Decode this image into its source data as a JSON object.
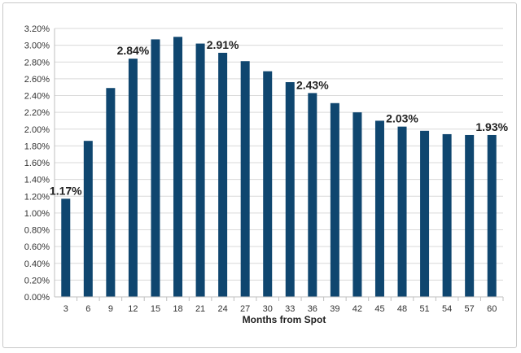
{
  "chart_data": {
    "type": "bar",
    "title": "",
    "xlabel": "Months from Spot",
    "ylabel": "",
    "categories": [
      "3",
      "6",
      "9",
      "12",
      "15",
      "18",
      "21",
      "24",
      "27",
      "30",
      "33",
      "36",
      "39",
      "42",
      "45",
      "48",
      "51",
      "54",
      "57",
      "60"
    ],
    "values": [
      1.17,
      1.86,
      2.49,
      2.84,
      3.07,
      3.1,
      3.02,
      2.91,
      2.81,
      2.69,
      2.56,
      2.43,
      2.31,
      2.2,
      2.1,
      2.03,
      1.98,
      1.94,
      1.93,
      1.93
    ],
    "ylim": [
      0,
      3.2
    ],
    "ytick_labels": [
      "0.00%",
      "0.20%",
      "0.40%",
      "0.60%",
      "0.80%",
      "1.00%",
      "1.20%",
      "1.40%",
      "1.60%",
      "1.80%",
      "2.00%",
      "2.20%",
      "2.40%",
      "2.60%",
      "2.80%",
      "3.00%",
      "3.20%"
    ],
    "data_labels": [
      {
        "category": "3",
        "text": "1.17%"
      },
      {
        "category": "12",
        "text": "2.84%"
      },
      {
        "category": "24",
        "text": "2.91%"
      },
      {
        "category": "36",
        "text": "2.43%"
      },
      {
        "category": "48",
        "text": "2.03%"
      },
      {
        "category": "60",
        "text": "1.93%"
      }
    ],
    "grid": true,
    "legend": "none",
    "bar_color": "#0f466f",
    "grid_color": "#d9d9d9",
    "axis_color": "#bfbfbf"
  }
}
